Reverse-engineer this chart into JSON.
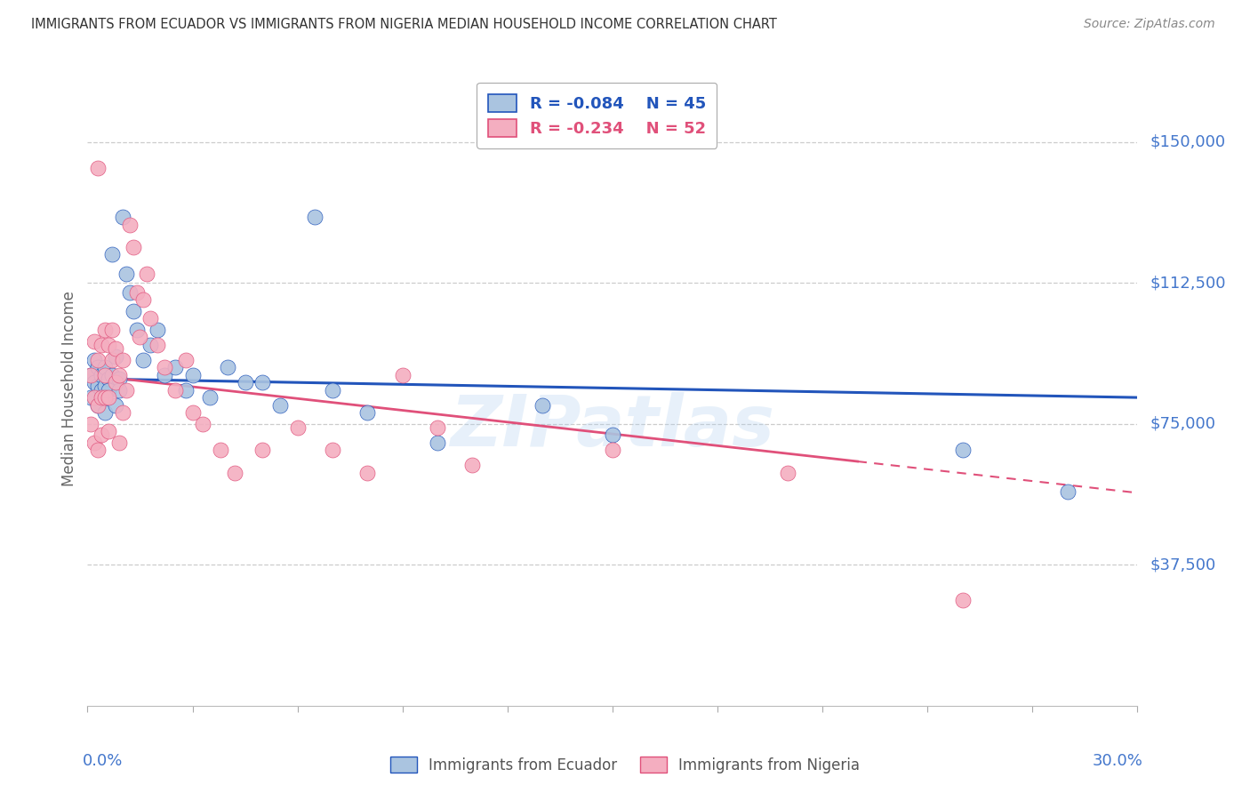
{
  "title": "IMMIGRANTS FROM ECUADOR VS IMMIGRANTS FROM NIGERIA MEDIAN HOUSEHOLD INCOME CORRELATION CHART",
  "source": "Source: ZipAtlas.com",
  "ylabel": "Median Household Income",
  "ylabel_right_labels": [
    "$150,000",
    "$112,500",
    "$75,000",
    "$37,500"
  ],
  "ylabel_right_values": [
    150000,
    112500,
    75000,
    37500
  ],
  "ylim": [
    0,
    168750
  ],
  "xlim": [
    0.0,
    0.3
  ],
  "ecuador_R": -0.084,
  "ecuador_N": 45,
  "nigeria_R": -0.234,
  "nigeria_N": 52,
  "ecuador_color": "#aac4e0",
  "nigeria_color": "#f4aec0",
  "ecuador_line_color": "#2255bb",
  "nigeria_line_color": "#e0507a",
  "axis_label_color": "#4477cc",
  "watermark": "ZIPatlas",
  "ecuador_x": [
    0.001,
    0.001,
    0.002,
    0.002,
    0.003,
    0.003,
    0.003,
    0.004,
    0.004,
    0.005,
    0.005,
    0.005,
    0.006,
    0.006,
    0.007,
    0.007,
    0.008,
    0.008,
    0.009,
    0.009,
    0.01,
    0.011,
    0.012,
    0.013,
    0.014,
    0.016,
    0.018,
    0.02,
    0.022,
    0.025,
    0.028,
    0.03,
    0.035,
    0.04,
    0.045,
    0.05,
    0.055,
    0.065,
    0.07,
    0.08,
    0.1,
    0.13,
    0.15,
    0.25,
    0.28
  ],
  "ecuador_y": [
    88000,
    82000,
    86000,
    92000,
    90000,
    85000,
    80000,
    88000,
    84000,
    90000,
    85000,
    78000,
    87000,
    84000,
    120000,
    88000,
    93000,
    80000,
    87000,
    84000,
    130000,
    115000,
    110000,
    105000,
    100000,
    92000,
    96000,
    100000,
    88000,
    90000,
    84000,
    88000,
    82000,
    90000,
    86000,
    86000,
    80000,
    130000,
    84000,
    78000,
    70000,
    80000,
    72000,
    68000,
    57000
  ],
  "nigeria_x": [
    0.001,
    0.001,
    0.002,
    0.002,
    0.002,
    0.003,
    0.003,
    0.003,
    0.003,
    0.004,
    0.004,
    0.004,
    0.005,
    0.005,
    0.005,
    0.006,
    0.006,
    0.006,
    0.007,
    0.007,
    0.008,
    0.008,
    0.009,
    0.009,
    0.01,
    0.01,
    0.011,
    0.012,
    0.013,
    0.014,
    0.015,
    0.016,
    0.017,
    0.018,
    0.02,
    0.022,
    0.025,
    0.028,
    0.03,
    0.033,
    0.038,
    0.042,
    0.05,
    0.06,
    0.07,
    0.08,
    0.09,
    0.1,
    0.11,
    0.15,
    0.2,
    0.25
  ],
  "nigeria_y": [
    88000,
    75000,
    70000,
    97000,
    82000,
    143000,
    80000,
    92000,
    68000,
    82000,
    96000,
    72000,
    88000,
    82000,
    100000,
    82000,
    73000,
    96000,
    100000,
    92000,
    86000,
    95000,
    88000,
    70000,
    78000,
    92000,
    84000,
    128000,
    122000,
    110000,
    98000,
    108000,
    115000,
    103000,
    96000,
    90000,
    84000,
    92000,
    78000,
    75000,
    68000,
    62000,
    68000,
    74000,
    68000,
    62000,
    88000,
    74000,
    64000,
    68000,
    62000,
    28000
  ]
}
